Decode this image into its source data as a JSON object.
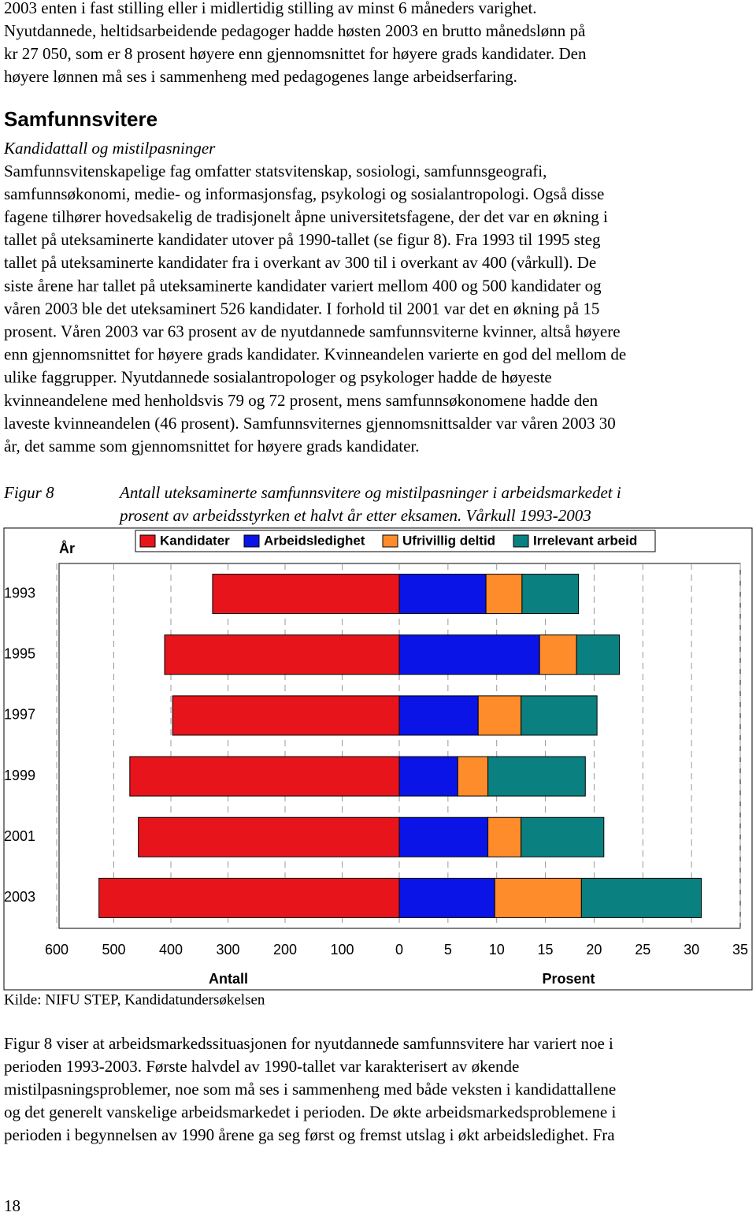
{
  "text_top": [
    "2003 enten i fast stilling eller i midlertidig stilling av minst 6 måneders varighet.",
    "Nyutdannede, heltidsarbeidende pedagoger hadde høsten 2003 en brutto månedslønn på",
    "kr 27 050, som er 8 prosent høyere enn gjennomsnittet for høyere grads kandidater. Den",
    "høyere lønnen må ses i sammenheng med pedagogenes lange arbeidserfaring."
  ],
  "heading": "Samfunnsvitere",
  "subheading": "Kandidattall og mistilpasninger",
  "body": [
    "Samfunnsvitenskapelige fag omfatter statsvitenskap, sosiologi, samfunnsgeografi,",
    "samfunnsøkonomi, medie- og informasjonsfag, psykologi og sosialantropologi. Også disse",
    "fagene tilhører hovedsakelig de tradisjonelt åpne universitetsfagene, der det var en økning i",
    "tallet på uteksaminerte kandidater utover på 1990-tallet (se figur 8). Fra 1993 til 1995 steg",
    "tallet på uteksaminerte kandidater fra i overkant av 300 til i overkant av 400 (vårkull). De",
    "siste årene har tallet på uteksaminerte kandidater variert mellom 400 og 500 kandidater og",
    "våren 2003 ble det uteksaminert 526 kandidater. I forhold til 2001 var det en økning på 15",
    "prosent. Våren 2003 var 63 prosent av de nyutdannede samfunnsviterne kvinner, altså høyere",
    "enn gjennomsnittet for høyere grads kandidater. Kvinneandelen varierte en god del mellom de",
    "ulike faggrupper. Nyutdannede sosialantropologer og psykologer hadde de høyeste",
    "kvinneandelene med henholdsvis 79 og 72 prosent, mens samfunnsøkonomene hadde den",
    "laveste kvinneandelen (46 prosent). Samfunnsviternes gjennomsnittsalder var våren 2003 30",
    "år, det samme som gjennomsnittet for høyere grads kandidater."
  ],
  "figure": {
    "label": "Figur 8",
    "caption": [
      "Antall uteksaminerte samfunnsvitere og mistilpasninger i arbeidsmarkedet i",
      "prosent av arbeidsstyrken et halvt år etter eksamen. Vårkull 1993-2003"
    ]
  },
  "chart_data": {
    "type": "bar",
    "orientation": "horizontal",
    "ylabel": "År",
    "categories": [
      "1993",
      "1995",
      "1997",
      "1999",
      "2001",
      "2003"
    ],
    "series": [
      {
        "name": "Kandidater",
        "color": "#e8141c",
        "axis": "x",
        "values": [
          327,
          411,
          397,
          472,
          457,
          526
        ]
      },
      {
        "name": "Arbeidsledighet",
        "color": "#0a14e6",
        "axis": "x2",
        "values": [
          8.9,
          14.4,
          8.1,
          6.0,
          9.1,
          9.8
        ]
      },
      {
        "name": "Ufrivillig deltid",
        "color": "#ff8c2a",
        "axis": "x2",
        "values": [
          3.7,
          3.8,
          4.4,
          3.1,
          3.4,
          8.9
        ]
      },
      {
        "name": "Irrelevant arbeid",
        "color": "#0a8080",
        "axis": "x2",
        "values": [
          5.8,
          4.4,
          7.8,
          10.0,
          8.5,
          12.3
        ]
      }
    ],
    "xlabel": "Antall",
    "xlim": [
      0,
      600
    ],
    "x_reversed": true,
    "xticks": [
      600,
      500,
      400,
      300,
      200,
      100
    ],
    "x2label": "Prosent",
    "x2lim": [
      0,
      35
    ],
    "x2ticks": [
      0,
      5,
      10,
      15,
      20,
      25,
      30,
      35
    ],
    "grid": true,
    "legend": "top"
  },
  "source": "Kilde: NIFU STEP, Kandidatundersøkelsen",
  "text_bottom": [
    "Figur 8 viser at arbeidsmarkedssituasjonen for nyutdannede samfunnsvitere har variert noe i",
    "perioden 1993-2003. Første halvdel av 1990-tallet var karakterisert av økende",
    "mistilpasningsproblemer, noe som må ses i sammenheng med både veksten i kandidattallene",
    "og det generelt vanskelige arbeidsmarkedet i perioden. De økte arbeidsmarkedsproblemene i",
    "perioden i begynnelsen av 1990 årene ga seg først og fremst utslag i økt arbeidsledighet. Fra"
  ],
  "page_number": "18"
}
